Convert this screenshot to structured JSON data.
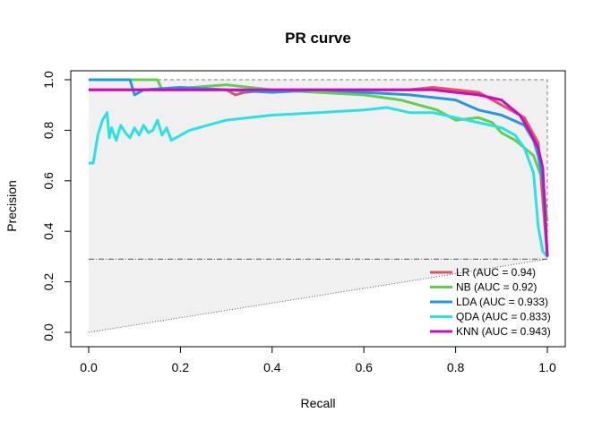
{
  "chart_data": {
    "type": "line",
    "title": "PR curve",
    "xlabel": "Recall",
    "ylabel": "Precision",
    "xlim": [
      0,
      1
    ],
    "ylim": [
      0,
      1
    ],
    "x_ticks": [
      "0.0",
      "0.2",
      "0.4",
      "0.6",
      "0.8",
      "1.0"
    ],
    "y_ticks": [
      "0.0",
      "0.2",
      "0.4",
      "0.6",
      "0.8",
      "1.0"
    ],
    "baseline_precision": 0.29,
    "grid": false,
    "legend_position": "bottom-right",
    "series": [
      {
        "name": "LR (AUC = 0.94)",
        "color": "#DF536B",
        "points": [
          [
            0,
            0.96
          ],
          [
            0.1,
            0.96
          ],
          [
            0.2,
            0.96
          ],
          [
            0.3,
            0.96
          ],
          [
            0.32,
            0.94
          ],
          [
            0.34,
            0.95
          ],
          [
            0.4,
            0.96
          ],
          [
            0.5,
            0.96
          ],
          [
            0.6,
            0.96
          ],
          [
            0.7,
            0.96
          ],
          [
            0.75,
            0.97
          ],
          [
            0.8,
            0.96
          ],
          [
            0.85,
            0.95
          ],
          [
            0.9,
            0.9
          ],
          [
            0.95,
            0.85
          ],
          [
            0.98,
            0.75
          ],
          [
            1.0,
            0.3
          ]
        ]
      },
      {
        "name": "NB (AUC = 0.92)",
        "color": "#61D04F",
        "points": [
          [
            0,
            1.0
          ],
          [
            0.15,
            1.0
          ],
          [
            0.16,
            0.96
          ],
          [
            0.3,
            0.98
          ],
          [
            0.4,
            0.96
          ],
          [
            0.5,
            0.95
          ],
          [
            0.6,
            0.94
          ],
          [
            0.68,
            0.92
          ],
          [
            0.72,
            0.9
          ],
          [
            0.76,
            0.88
          ],
          [
            0.8,
            0.84
          ],
          [
            0.85,
            0.85
          ],
          [
            0.88,
            0.83
          ],
          [
            0.9,
            0.79
          ],
          [
            0.93,
            0.76
          ],
          [
            0.95,
            0.73
          ],
          [
            0.97,
            0.7
          ],
          [
            0.99,
            0.6
          ],
          [
            1.0,
            0.44
          ]
        ]
      },
      {
        "name": "LDA (AUC = 0.933)",
        "color": "#2297E6",
        "points": [
          [
            0,
            1.0
          ],
          [
            0.09,
            1.0
          ],
          [
            0.1,
            0.94
          ],
          [
            0.12,
            0.96
          ],
          [
            0.2,
            0.97
          ],
          [
            0.3,
            0.96
          ],
          [
            0.4,
            0.95
          ],
          [
            0.5,
            0.96
          ],
          [
            0.6,
            0.95
          ],
          [
            0.7,
            0.94
          ],
          [
            0.75,
            0.93
          ],
          [
            0.8,
            0.92
          ],
          [
            0.85,
            0.88
          ],
          [
            0.9,
            0.86
          ],
          [
            0.95,
            0.82
          ],
          [
            0.97,
            0.76
          ],
          [
            0.98,
            0.7
          ],
          [
            0.99,
            0.6
          ],
          [
            1.0,
            0.3
          ]
        ]
      },
      {
        "name": "QDA (AUC = 0.833)",
        "color": "#28E2E5",
        "points": [
          [
            0,
            0.67
          ],
          [
            0.01,
            0.67
          ],
          [
            0.02,
            0.78
          ],
          [
            0.03,
            0.84
          ],
          [
            0.04,
            0.87
          ],
          [
            0.045,
            0.77
          ],
          [
            0.05,
            0.81
          ],
          [
            0.06,
            0.76
          ],
          [
            0.07,
            0.82
          ],
          [
            0.08,
            0.79
          ],
          [
            0.09,
            0.77
          ],
          [
            0.1,
            0.81
          ],
          [
            0.11,
            0.78
          ],
          [
            0.12,
            0.82
          ],
          [
            0.13,
            0.79
          ],
          [
            0.14,
            0.8
          ],
          [
            0.15,
            0.84
          ],
          [
            0.16,
            0.78
          ],
          [
            0.17,
            0.81
          ],
          [
            0.18,
            0.76
          ],
          [
            0.22,
            0.8
          ],
          [
            0.3,
            0.84
          ],
          [
            0.4,
            0.86
          ],
          [
            0.5,
            0.87
          ],
          [
            0.6,
            0.88
          ],
          [
            0.65,
            0.89
          ],
          [
            0.7,
            0.87
          ],
          [
            0.75,
            0.87
          ],
          [
            0.8,
            0.85
          ],
          [
            0.85,
            0.83
          ],
          [
            0.9,
            0.81
          ],
          [
            0.93,
            0.78
          ],
          [
            0.95,
            0.73
          ],
          [
            0.97,
            0.63
          ],
          [
            0.98,
            0.42
          ],
          [
            0.99,
            0.32
          ],
          [
            1.0,
            0.3
          ]
        ]
      },
      {
        "name": "KNN (AUC = 0.943)",
        "color": "#CD0BBC",
        "points": [
          [
            0,
            0.96
          ],
          [
            0.1,
            0.96
          ],
          [
            0.2,
            0.96
          ],
          [
            0.3,
            0.96
          ],
          [
            0.4,
            0.96
          ],
          [
            0.5,
            0.96
          ],
          [
            0.6,
            0.96
          ],
          [
            0.7,
            0.96
          ],
          [
            0.75,
            0.96
          ],
          [
            0.8,
            0.95
          ],
          [
            0.85,
            0.94
          ],
          [
            0.9,
            0.92
          ],
          [
            0.94,
            0.86
          ],
          [
            0.96,
            0.8
          ],
          [
            0.98,
            0.73
          ],
          [
            0.99,
            0.65
          ],
          [
            1.0,
            0.3
          ]
        ]
      }
    ]
  }
}
